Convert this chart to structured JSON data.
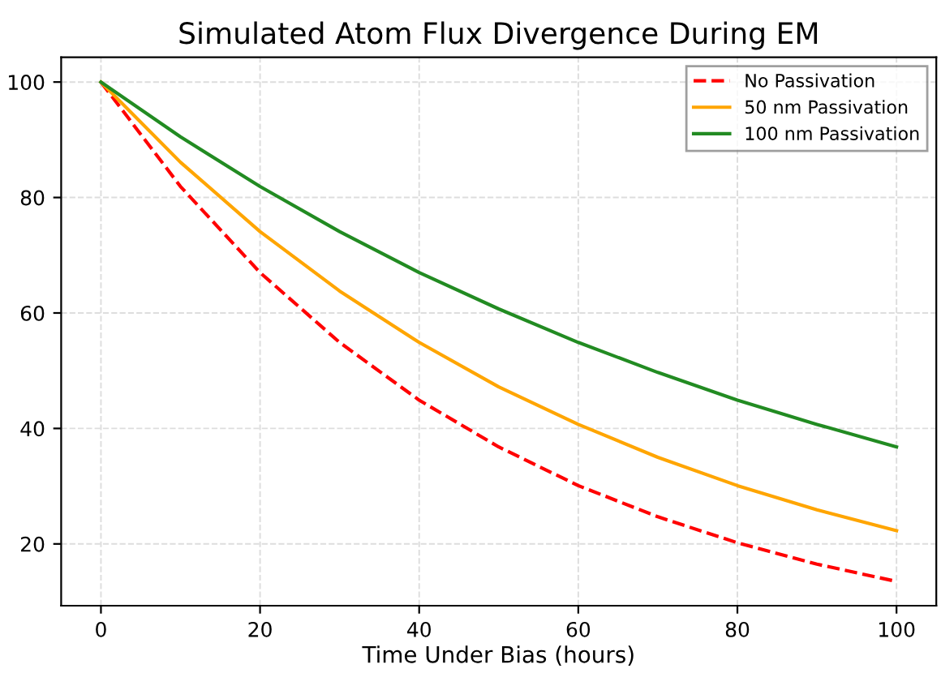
{
  "chart_data": {
    "type": "line",
    "title": "Simulated Atom Flux Divergence During EM",
    "xlabel": "Time Under Bias (hours)",
    "x": [
      0,
      10,
      20,
      30,
      40,
      50,
      60,
      70,
      80,
      90,
      100
    ],
    "series": [
      {
        "name": "No Passivation",
        "color": "#ff0000",
        "line_style": "dashed",
        "values": [
          100,
          81.9,
          67.0,
          54.9,
          44.9,
          36.8,
          30.1,
          24.7,
          20.2,
          16.5,
          13.5
        ]
      },
      {
        "name": "50 nm Passivation",
        "color": "#ffa500",
        "line_style": "solid",
        "values": [
          100,
          86.1,
          74.1,
          63.8,
          54.9,
          47.2,
          40.7,
          35.0,
          30.1,
          25.9,
          22.3
        ]
      },
      {
        "name": "100 nm Passivation",
        "color": "#228b22",
        "line_style": "solid",
        "values": [
          100,
          90.5,
          81.9,
          74.1,
          67.0,
          60.7,
          54.9,
          49.7,
          44.9,
          40.7,
          36.8
        ]
      }
    ],
    "xlim": [
      -5,
      105
    ],
    "ylim": [
      9.3,
      104.3
    ],
    "xticks": [
      0,
      20,
      40,
      60,
      80,
      100
    ],
    "yticks": [
      20,
      40,
      60,
      80,
      100
    ],
    "grid": true,
    "legend": "top right",
    "marker": "none"
  }
}
